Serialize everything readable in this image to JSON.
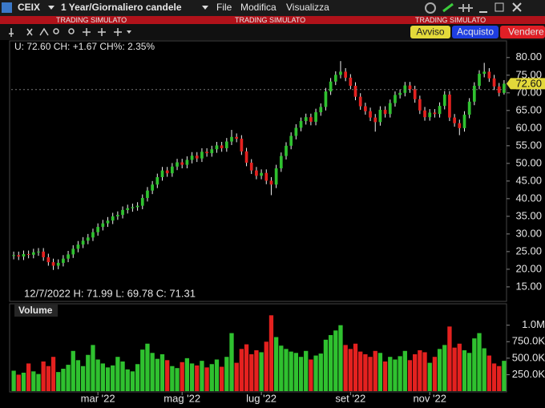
{
  "toolbar": {
    "symbol": "CEIX",
    "period": "1 Year/Giornaliero candele",
    "menu": [
      "File",
      "Modifica",
      "Visualizza"
    ]
  },
  "banner": [
    "TRADING SIMULATO",
    "TRADING SIMULATO",
    "TRADING SIMULATO"
  ],
  "buttons": [
    "Avviso",
    "Acquisto",
    "Vendere"
  ],
  "chart_data": {
    "type": "candlestick",
    "info_text": "U: 72.60 CH: +1.67 CH%: 2.35%",
    "ohlc_text": "12/7/2022 H: 71.99 L: 69.78 C: 71.31",
    "volume_label": "Volume",
    "up_color": "#2fc12f",
    "down_color": "#e4211f",
    "open": [
      23.8,
      24,
      23.6,
      24.3,
      24.1,
      24.8,
      25,
      23.4,
      22,
      21,
      21.8,
      23,
      24.2,
      25.8,
      27,
      28.1,
      29,
      30.5,
      32,
      33,
      33.8,
      35,
      35.4,
      36.8,
      37.3,
      37.6,
      38,
      40.2,
      42.3,
      44,
      46.1,
      48,
      47.2,
      49.1,
      50.3,
      49.6,
      51,
      52.2,
      51.4,
      53.3,
      52.9,
      54,
      55.1,
      54.3,
      56.2,
      57.5,
      57,
      53.4,
      50.2,
      48,
      46.5,
      47.3,
      45.1,
      44,
      48.6,
      52.1,
      55,
      57.8,
      60.1,
      62,
      63.1,
      61.8,
      64.5,
      66,
      70.4,
      73.2,
      75.1,
      76,
      74.3,
      72,
      68.9,
      66.2,
      64.8,
      63,
      61.7,
      65.2,
      64,
      67.1,
      69.4,
      70,
      72.1,
      71,
      68.2,
      65,
      63.1,
      64.4,
      64,
      66.3,
      69.5,
      63,
      61.4,
      60,
      63.8,
      67.5,
      72,
      75.4,
      76,
      74.1,
      71.8,
      70
    ],
    "high": [
      25,
      25,
      25.3,
      25.3,
      25.8,
      26,
      26,
      24.4,
      23,
      22.8,
      24,
      25.2,
      26.8,
      28,
      29.1,
      30,
      31.5,
      33,
      34,
      34.8,
      36,
      36.4,
      37.8,
      38.3,
      38.6,
      39,
      41.2,
      43.3,
      45,
      47.1,
      49,
      49,
      50.1,
      51.3,
      51.3,
      52,
      53.2,
      53.2,
      54.3,
      54.3,
      55,
      56.1,
      56.1,
      57.2,
      59.5,
      58.5,
      58,
      54.4,
      51.2,
      49,
      48.3,
      48.3,
      46.1,
      49.6,
      53.1,
      56,
      58.8,
      61.1,
      63,
      64.1,
      64.1,
      65.5,
      67,
      71.4,
      74.2,
      76.1,
      79,
      77,
      75.3,
      73,
      69.9,
      67.2,
      65.8,
      64,
      66.2,
      66.2,
      68.1,
      70.4,
      71,
      73.1,
      73.1,
      72,
      69.2,
      66,
      65.4,
      65.4,
      67.3,
      70.5,
      70.5,
      64,
      62.4,
      64.8,
      68.5,
      73,
      76.4,
      78.5,
      77,
      75.1,
      72.8,
      73.6
    ],
    "low": [
      22.8,
      22.6,
      22.6,
      23.1,
      23.1,
      23.8,
      22.4,
      21,
      19.8,
      20,
      20.8,
      22,
      23.2,
      24.8,
      26,
      27.1,
      28,
      29.5,
      31,
      32,
      32.8,
      34,
      34.4,
      35.8,
      36.3,
      36.6,
      37,
      39.2,
      41.3,
      43,
      45.1,
      46.2,
      46.2,
      48.1,
      48.6,
      48.6,
      50,
      50.4,
      50.4,
      51.9,
      51.9,
      53,
      53.3,
      53.3,
      55.2,
      56,
      52.4,
      49.2,
      47,
      45.5,
      45.5,
      44.1,
      41,
      43,
      47.6,
      51.1,
      54,
      56.8,
      59.1,
      61,
      60.8,
      60.8,
      63.5,
      65,
      69.4,
      72.2,
      74.1,
      73.3,
      71,
      67.9,
      65.2,
      63.8,
      62,
      59,
      60.7,
      63,
      63,
      66.1,
      68.4,
      69,
      70,
      67.2,
      64,
      62.1,
      62.1,
      63,
      63,
      65.3,
      62,
      60.4,
      58,
      59,
      62.8,
      66.5,
      71,
      74.4,
      73.1,
      70.8,
      69,
      69.5
    ],
    "close": [
      24,
      23.6,
      24.3,
      24.1,
      24.8,
      25,
      23.4,
      22,
      21,
      21.8,
      23,
      24.2,
      25.8,
      27,
      28.1,
      29,
      30.5,
      32,
      33,
      33.8,
      35,
      35.4,
      36.8,
      37.3,
      37.6,
      38,
      40.2,
      42.3,
      44,
      46.1,
      48,
      47.2,
      49.1,
      50.3,
      49.6,
      51,
      52.2,
      51.4,
      53.3,
      52.9,
      54,
      55.1,
      54.3,
      56.2,
      57.5,
      57,
      53.4,
      50.2,
      48,
      46.5,
      47.3,
      45.1,
      44,
      48.6,
      52.1,
      55,
      57.8,
      60.1,
      62,
      63.1,
      61.8,
      64.5,
      66,
      70.4,
      73.2,
      75.1,
      76,
      74.3,
      72,
      68.9,
      66.2,
      64.8,
      63,
      61.7,
      65.2,
      64,
      67.1,
      69.4,
      70,
      72.1,
      71,
      68.2,
      65,
      63.1,
      64.4,
      64,
      66.3,
      69.5,
      63,
      61.4,
      60,
      63.8,
      67.5,
      72,
      75.4,
      76,
      74.1,
      71.8,
      70,
      72.6
    ],
    "volume": [
      310000,
      250000,
      280000,
      420000,
      300000,
      260000,
      450000,
      380000,
      520000,
      290000,
      340000,
      400000,
      610000,
      470000,
      380000,
      550000,
      700000,
      480000,
      420000,
      360000,
      390000,
      520000,
      450000,
      330000,
      300000,
      410000,
      630000,
      720000,
      580000,
      490000,
      560000,
      470000,
      380000,
      350000,
      440000,
      500000,
      420000,
      390000,
      460000,
      360000,
      410000,
      480000,
      370000,
      520000,
      880000,
      430000,
      640000,
      710000,
      560000,
      620000,
      590000,
      750000,
      1150000,
      820000,
      690000,
      640000,
      600000,
      580000,
      520000,
      610000,
      480000,
      540000,
      570000,
      780000,
      850000,
      920000,
      1000000,
      700000,
      640000,
      720000,
      600000,
      560000,
      520000,
      610000,
      580000,
      450000,
      520000,
      480000,
      530000,
      610000,
      470000,
      560000,
      620000,
      590000,
      430000,
      520000,
      640000,
      700000,
      980000,
      660000,
      720000,
      620000,
      580000,
      800000,
      880000,
      650000,
      540000,
      420000,
      380000,
      460000
    ],
    "ylim": [
      11,
      84.5
    ],
    "yticks": [
      {
        "value": 15,
        "label": "15.00"
      },
      {
        "value": 20,
        "label": "20.00"
      },
      {
        "value": 25,
        "label": "25.00"
      },
      {
        "value": 30,
        "label": "30.00"
      },
      {
        "value": 35,
        "label": "35.00"
      },
      {
        "value": 40,
        "label": "40.00"
      },
      {
        "value": 45,
        "label": "45.00"
      },
      {
        "value": 50,
        "label": "50.00"
      },
      {
        "value": 55,
        "label": "55.00"
      },
      {
        "value": 60,
        "label": "60.00"
      },
      {
        "value": 65,
        "label": "65.00"
      },
      {
        "value": 70,
        "label": "70.00"
      },
      {
        "value": 75,
        "label": "75.00"
      },
      {
        "value": 80,
        "label": "80.00"
      }
    ],
    "volume_ylim": [
      0,
      1300000
    ],
    "volume_yticks": [
      {
        "value": 250000,
        "label": "250.0K"
      },
      {
        "value": 500000,
        "label": "500.0K"
      },
      {
        "value": 750000,
        "label": "750.0K"
      },
      {
        "value": 1000000,
        "label": "1.0M"
      }
    ],
    "xlim": [
      -0.5,
      99.5
    ],
    "xticks": [
      {
        "value": 17,
        "label": "mar '22"
      },
      {
        "value": 34,
        "label": "mag '22"
      },
      {
        "value": 50,
        "label": "lug '22"
      },
      {
        "value": 68,
        "label": "set '22"
      },
      {
        "value": 84,
        "label": "nov '22"
      }
    ],
    "last_price": {
      "value": 72.6,
      "label": "72.60"
    },
    "prev_close": 70.93
  }
}
